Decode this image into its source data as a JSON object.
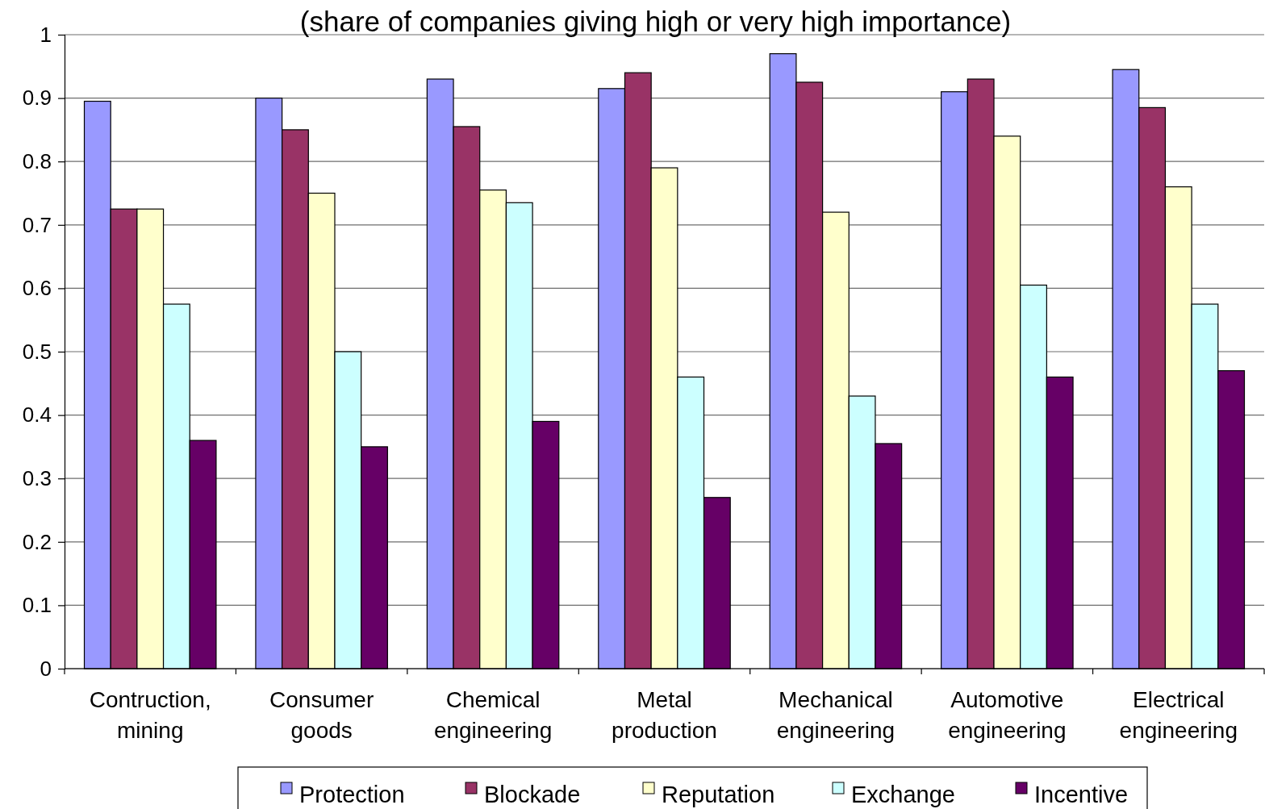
{
  "chart_data": {
    "type": "bar",
    "title": "(share of companies giving high or very high importance)",
    "categories": [
      "Contruction, mining",
      "Consumer goods",
      "Chemical engineering",
      "Metal production",
      "Mechanical engineering",
      "Automotive engineering",
      "Electrical engineering"
    ],
    "series": [
      {
        "name": "Protection",
        "color": "#9999ff",
        "values": [
          0.895,
          0.9,
          0.93,
          0.915,
          0.97,
          0.91,
          0.945
        ]
      },
      {
        "name": "Blockade",
        "color": "#993366",
        "values": [
          0.725,
          0.85,
          0.855,
          0.94,
          0.925,
          0.93,
          0.885
        ]
      },
      {
        "name": "Reputation",
        "color": "#ffffcc",
        "values": [
          0.725,
          0.75,
          0.755,
          0.79,
          0.72,
          0.84,
          0.76
        ]
      },
      {
        "name": "Exchange",
        "color": "#ccffff",
        "values": [
          0.575,
          0.5,
          0.735,
          0.46,
          0.43,
          0.605,
          0.575
        ]
      },
      {
        "name": "Incentive",
        "color": "#660066",
        "values": [
          0.36,
          0.35,
          0.39,
          0.27,
          0.355,
          0.46,
          0.47
        ]
      }
    ],
    "ylim": [
      0,
      1
    ],
    "yticks": [
      0,
      0.1,
      0.2,
      0.3,
      0.4,
      0.5,
      0.6,
      0.7,
      0.8,
      0.9,
      1
    ],
    "grid": "y",
    "legend": "bottom"
  }
}
